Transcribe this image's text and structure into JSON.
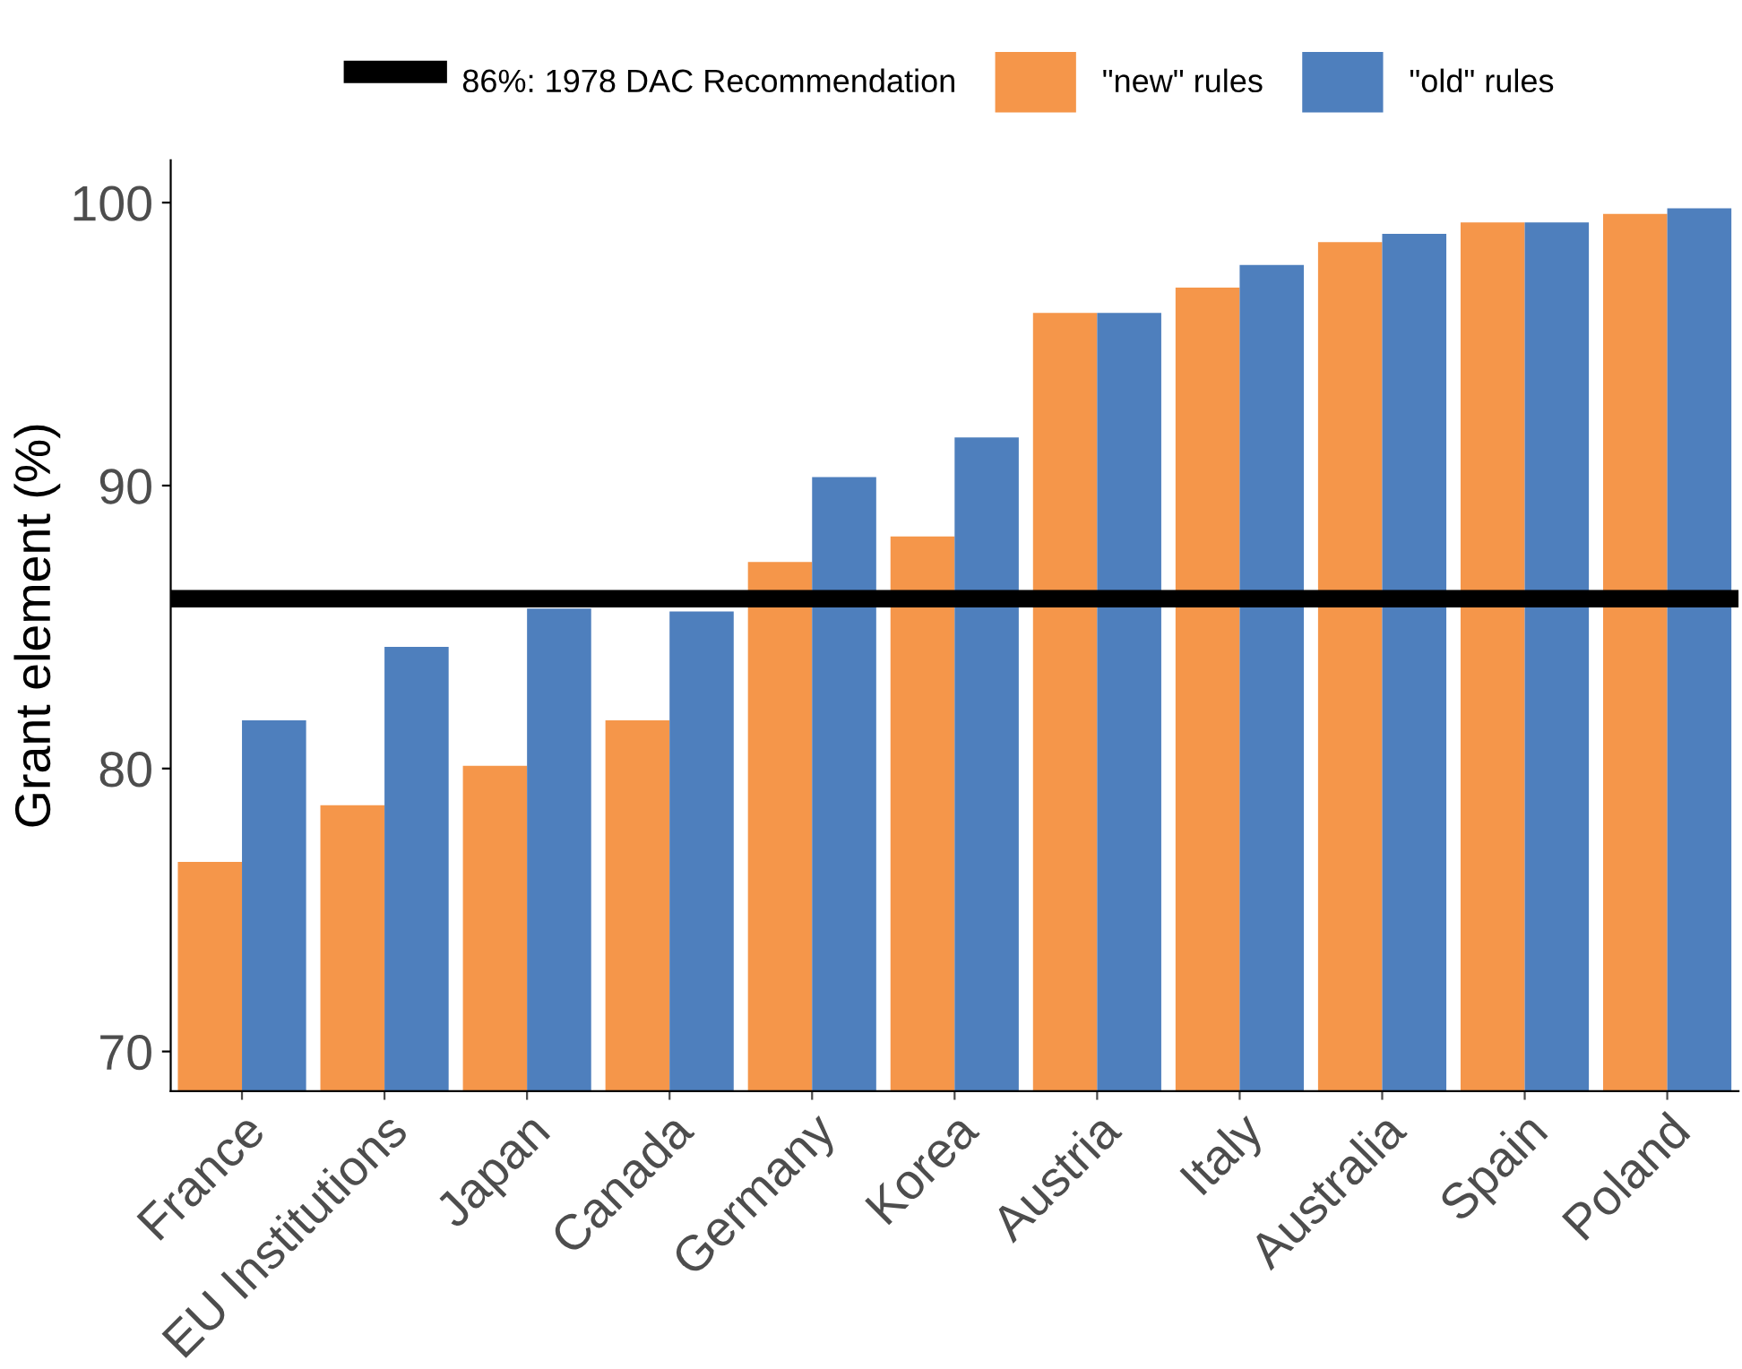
{
  "chart_data": {
    "type": "bar",
    "ylabel": "Grant element (%)",
    "categories": [
      "France",
      "EU Institutions",
      "Japan",
      "Canada",
      "Germany",
      "Korea",
      "Austria",
      "Italy",
      "Australia",
      "Spain",
      "Poland"
    ],
    "series": [
      {
        "name": "\"new\" rules",
        "color": "#f5964a",
        "values": [
          76.7,
          78.7,
          80.1,
          81.7,
          87.3,
          88.2,
          96.1,
          97.0,
          98.6,
          99.3,
          99.6
        ]
      },
      {
        "name": "\"old\" rules",
        "color": "#4e7fbd",
        "values": [
          81.7,
          84.3,
          85.65,
          85.55,
          90.3,
          91.7,
          96.1,
          97.8,
          98.9,
          99.3,
          99.8
        ]
      }
    ],
    "ylim": [
      68.6,
      101.5
    ],
    "yticks": [
      70,
      80,
      90,
      100
    ],
    "ref_lines": [
      {
        "axis": "y",
        "value": 86,
        "label": "86%: 1978 DAC Recommendation",
        "color": "#000000",
        "line_style": "solid"
      }
    ],
    "grid": false,
    "legend": "top"
  }
}
